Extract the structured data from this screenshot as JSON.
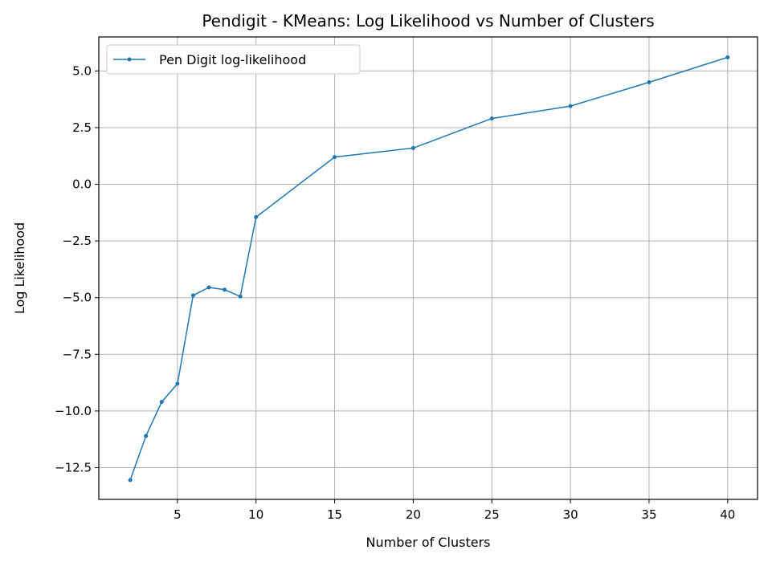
{
  "chart_data": {
    "type": "line",
    "title": "Pendigit - KMeans: Log Likelihood vs Number of Clusters",
    "xlabel": "Number of Clusters",
    "ylabel": "Log Likelihood",
    "xlim": [
      -0.0,
      41.9
    ],
    "ylim": [
      -13.9,
      6.5
    ],
    "xticks": [
      5,
      10,
      15,
      20,
      25,
      30,
      35,
      40
    ],
    "xtick_labels": [
      "5",
      "10",
      "15",
      "20",
      "25",
      "30",
      "35",
      "40"
    ],
    "yticks": [
      5.0,
      2.5,
      0.0,
      -2.5,
      -5.0,
      -7.5,
      -10.0,
      -12.5
    ],
    "ytick_labels": [
      "5.0",
      "2.5",
      "0.0",
      "−2.5",
      "−5.0",
      "−7.5",
      "−10.0",
      "−12.5"
    ],
    "grid": true,
    "legend_position": "top-left",
    "series": [
      {
        "name": "Pen Digit log-likelihood",
        "color": "#1f77b4",
        "marker": "dot",
        "x": [
          2,
          3,
          4,
          5,
          6,
          7,
          8,
          9,
          10,
          15,
          20,
          25,
          30,
          35,
          40
        ],
        "y": [
          -13.05,
          -11.1,
          -9.6,
          -8.8,
          -4.9,
          -4.55,
          -4.65,
          -4.95,
          -1.45,
          1.2,
          1.6,
          2.9,
          3.45,
          4.5,
          5.6
        ]
      }
    ]
  }
}
